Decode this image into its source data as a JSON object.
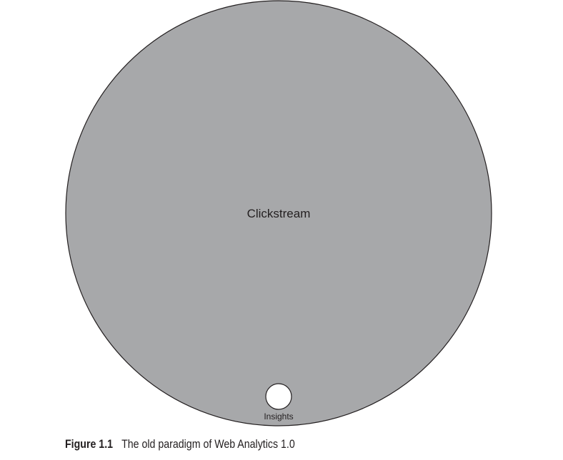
{
  "diagram": {
    "outer_label": "Clickstream",
    "inner_label": "Insights",
    "colors": {
      "outer_fill": "#a7a8aa",
      "outline": "#231f20",
      "inner_fill": "#ffffff"
    }
  },
  "caption": {
    "number": "Figure 1.1",
    "text": "The old paradigm of Web Analytics 1.0"
  }
}
